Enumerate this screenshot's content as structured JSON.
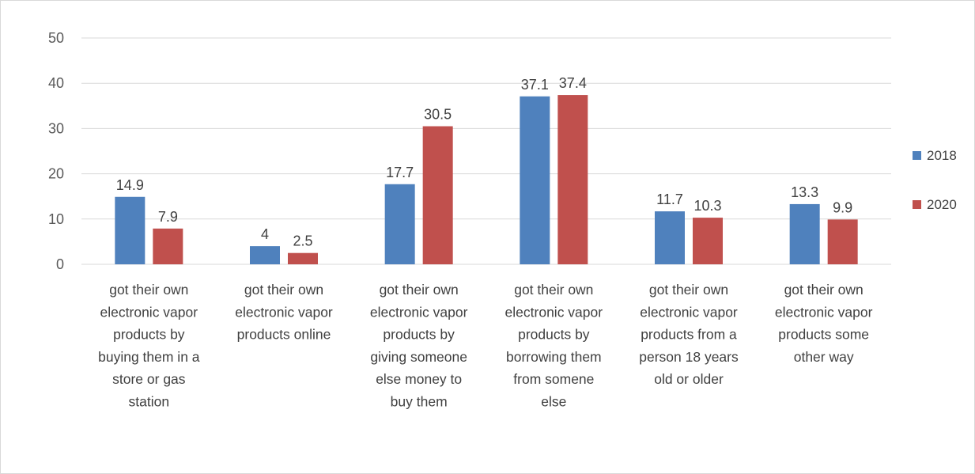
{
  "chart_data": {
    "type": "bar",
    "categories": [
      [
        "got their own",
        "electronic vapor",
        "products by",
        "buying them in a",
        "store or gas",
        "station"
      ],
      [
        "got their own",
        "electronic vapor",
        "products online"
      ],
      [
        "got their own",
        "electronic vapor",
        "products by",
        "giving someone",
        "else money to",
        "buy them"
      ],
      [
        "got their own",
        "electronic vapor",
        "products by",
        "borrowing them",
        "from somene",
        "else"
      ],
      [
        "got their own",
        "electronic vapor",
        "products from a",
        "person 18 years",
        "old or older"
      ],
      [
        "got their own",
        "electronic vapor",
        "products some",
        "other way"
      ]
    ],
    "series": [
      {
        "name": "2018",
        "color": "#4f81bd",
        "values": [
          14.9,
          4,
          17.7,
          37.1,
          11.7,
          13.3
        ],
        "labels": [
          "14.9",
          "4",
          "17.7",
          "37.1",
          "11.7",
          "13.3"
        ]
      },
      {
        "name": "2020",
        "color": "#c0504d",
        "values": [
          7.9,
          2.5,
          30.5,
          37.4,
          10.3,
          9.9
        ],
        "labels": [
          "7.9",
          "2.5",
          "30.5",
          "37.4",
          "10.3",
          "9.9"
        ]
      }
    ],
    "ylim": [
      0,
      50
    ],
    "yticks": [
      "0",
      "10",
      "20",
      "30",
      "40",
      "50"
    ],
    "grid": true,
    "legend_position": "right",
    "title": "",
    "xlabel": "",
    "ylabel": ""
  }
}
